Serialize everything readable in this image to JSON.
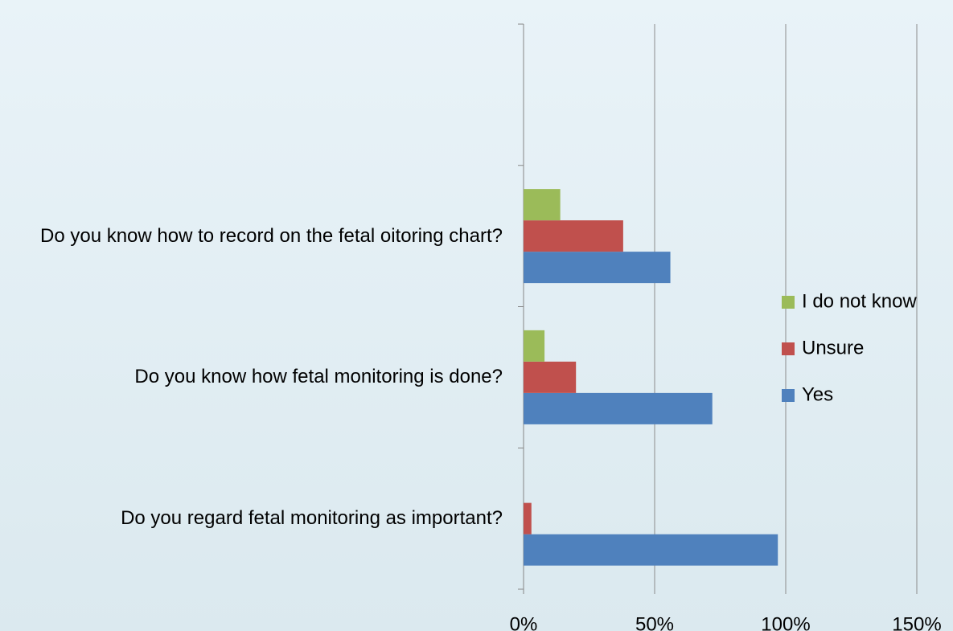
{
  "chart_data": {
    "type": "bar",
    "orientation": "horizontal",
    "categories": [
      "Do you regard fetal monitoring as important?",
      "Do you know how fetal monitoring is done?",
      "Do you know how to record on the fetal oitoring chart?",
      null
    ],
    "series": [
      {
        "name": "Yes",
        "color": "#4f81bd",
        "values": [
          97,
          72,
          56,
          null
        ]
      },
      {
        "name": "Unsure",
        "color": "#c0504d",
        "values": [
          3,
          20,
          38,
          null
        ]
      },
      {
        "name": "I do not know",
        "color": "#9bbb59",
        "values": [
          0,
          8,
          14,
          null
        ]
      }
    ],
    "xlim": [
      0,
      150
    ],
    "xticks": [
      {
        "value": 0,
        "label": "0%"
      },
      {
        "value": 50,
        "label": "50%"
      },
      {
        "value": 100,
        "label": "100%"
      },
      {
        "value": 150,
        "label": "150%"
      }
    ],
    "grid": true,
    "legend": "right"
  }
}
